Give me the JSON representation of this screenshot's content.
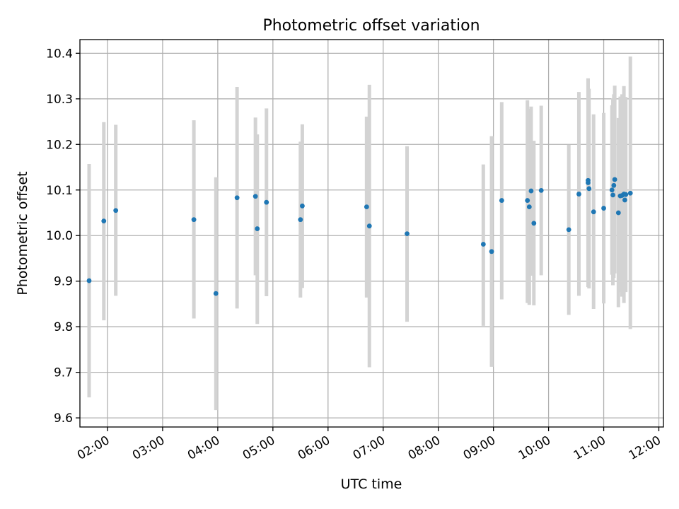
{
  "chart_data": {
    "type": "scatter",
    "title": "Photometric offset variation",
    "xlabel": "UTC time",
    "ylabel": "Photometric offset",
    "grid": true,
    "legend": "none",
    "x_is_time": true,
    "xlim": [
      "01:30",
      "12:05"
    ],
    "ylim": [
      9.58,
      10.43
    ],
    "x_ticks": [
      "02:00",
      "03:00",
      "04:00",
      "05:00",
      "06:00",
      "07:00",
      "08:00",
      "09:00",
      "10:00",
      "11:00",
      "12:00"
    ],
    "y_ticks": [
      "9.6",
      "9.7",
      "9.8",
      "9.9",
      "10.0",
      "10.1",
      "10.2",
      "10.3",
      "10.4"
    ],
    "point_color": "#1f77b4",
    "errorbar_color": "#d3d3d3",
    "series": [
      {
        "points": [
          {
            "x": "01:40",
            "y": 9.901,
            "ylow": 9.645,
            "yhigh": 10.157
          },
          {
            "x": "01:56",
            "y": 10.032,
            "ylow": 9.814,
            "yhigh": 10.249
          },
          {
            "x": "02:09",
            "y": 10.055,
            "ylow": 9.868,
            "yhigh": 10.243
          },
          {
            "x": "03:34",
            "y": 10.035,
            "ylow": 9.818,
            "yhigh": 10.253
          },
          {
            "x": "03:58",
            "y": 9.873,
            "ylow": 9.617,
            "yhigh": 10.128
          },
          {
            "x": "04:21",
            "y": 10.083,
            "ylow": 9.84,
            "yhigh": 10.326
          },
          {
            "x": "04:41",
            "y": 10.086,
            "ylow": 9.913,
            "yhigh": 10.259
          },
          {
            "x": "04:43",
            "y": 10.015,
            "ylow": 9.806,
            "yhigh": 10.222
          },
          {
            "x": "04:53",
            "y": 10.073,
            "ylow": 9.867,
            "yhigh": 10.279
          },
          {
            "x": "05:30",
            "y": 10.035,
            "ylow": 9.864,
            "yhigh": 10.206
          },
          {
            "x": "05:32",
            "y": 10.065,
            "ylow": 9.885,
            "yhigh": 10.244
          },
          {
            "x": "06:42",
            "y": 10.063,
            "ylow": 9.864,
            "yhigh": 10.261
          },
          {
            "x": "06:45",
            "y": 10.021,
            "ylow": 9.711,
            "yhigh": 10.331
          },
          {
            "x": "07:26",
            "y": 10.004,
            "ylow": 9.811,
            "yhigh": 10.196
          },
          {
            "x": "08:49",
            "y": 9.981,
            "ylow": 9.802,
            "yhigh": 10.156
          },
          {
            "x": "08:58",
            "y": 9.965,
            "ylow": 9.712,
            "yhigh": 10.218
          },
          {
            "x": "09:09",
            "y": 10.077,
            "ylow": 9.86,
            "yhigh": 10.293
          },
          {
            "x": "09:37",
            "y": 10.077,
            "ylow": 9.852,
            "yhigh": 10.297
          },
          {
            "x": "09:39",
            "y": 10.063,
            "ylow": 9.848,
            "yhigh": 10.278
          },
          {
            "x": "09:41",
            "y": 10.098,
            "ylow": 9.912,
            "yhigh": 10.283
          },
          {
            "x": "09:44",
            "y": 10.027,
            "ylow": 9.847,
            "yhigh": 10.208
          },
          {
            "x": "09:52",
            "y": 10.099,
            "ylow": 9.913,
            "yhigh": 10.285
          },
          {
            "x": "10:22",
            "y": 10.013,
            "ylow": 9.826,
            "yhigh": 10.199
          },
          {
            "x": "10:33",
            "y": 10.091,
            "ylow": 9.868,
            "yhigh": 10.315
          },
          {
            "x": "10:43",
            "y": 10.121,
            "ylow": 9.896,
            "yhigh": 10.345
          },
          {
            "x": "10:43",
            "y": 10.116,
            "ylow": 9.887,
            "yhigh": 10.343
          },
          {
            "x": "10:44",
            "y": 10.103,
            "ylow": 9.884,
            "yhigh": 10.322
          },
          {
            "x": "10:49",
            "y": 10.052,
            "ylow": 9.839,
            "yhigh": 10.266
          },
          {
            "x": "11:00",
            "y": 10.06,
            "ylow": 9.851,
            "yhigh": 10.269
          },
          {
            "x": "11:09",
            "y": 10.1,
            "ylow": 9.914,
            "yhigh": 10.286
          },
          {
            "x": "11:10",
            "y": 10.089,
            "ylow": 9.891,
            "yhigh": 10.301
          },
          {
            "x": "11:11",
            "y": 10.11,
            "ylow": 9.907,
            "yhigh": 10.31
          },
          {
            "x": "11:12",
            "y": 10.123,
            "ylow": 9.917,
            "yhigh": 10.329
          },
          {
            "x": "11:16",
            "y": 10.05,
            "ylow": 9.843,
            "yhigh": 10.258
          },
          {
            "x": "11:18",
            "y": 10.087,
            "ylow": 9.876,
            "yhigh": 10.305
          },
          {
            "x": "11:20",
            "y": 10.088,
            "ylow": 9.866,
            "yhigh": 10.31
          },
          {
            "x": "11:22",
            "y": 10.091,
            "ylow": 9.852,
            "yhigh": 10.328
          },
          {
            "x": "11:23",
            "y": 10.078,
            "ylow": 9.882,
            "yhigh": 10.296
          },
          {
            "x": "11:24",
            "y": 10.09,
            "ylow": 9.876,
            "yhigh": 10.304
          },
          {
            "x": "11:29",
            "y": 10.093,
            "ylow": 9.795,
            "yhigh": 10.393
          }
        ]
      }
    ]
  }
}
